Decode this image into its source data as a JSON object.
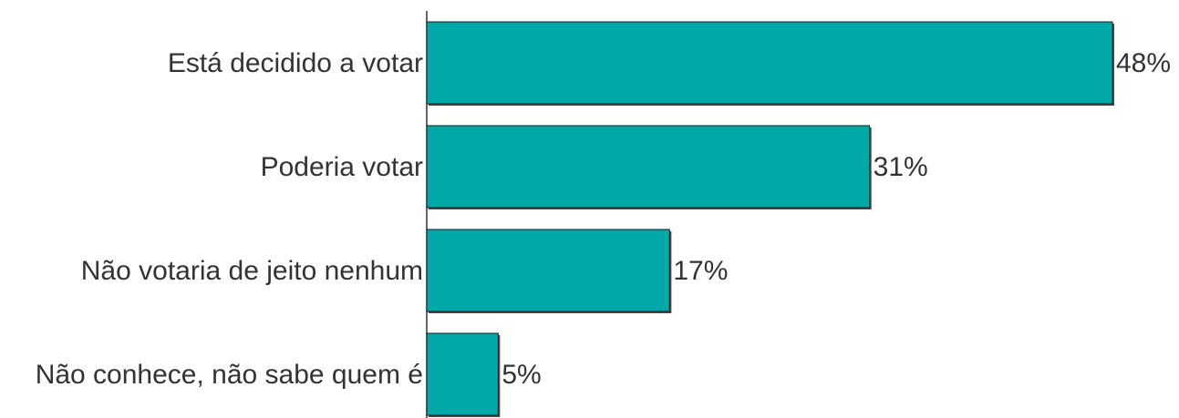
{
  "chart_data": {
    "type": "bar",
    "orientation": "horizontal",
    "categories": [
      "Está decidido a votar",
      "Poderia votar",
      "Não votaria de jeito nenhum",
      "Não conhece, não sabe quem é"
    ],
    "values": [
      48,
      31,
      17,
      5
    ],
    "value_labels": [
      "48%",
      "31%",
      "17%",
      "5%"
    ],
    "unit": "%",
    "xlim": [
      0,
      48
    ],
    "grid": false,
    "legend": "none",
    "colors": {
      "bar_fill": "#00a8a8",
      "bar_stroke": "#1a1a1a",
      "bar_shadow": "#4a4a4a",
      "text": "#333333",
      "axis": "#333333"
    }
  }
}
